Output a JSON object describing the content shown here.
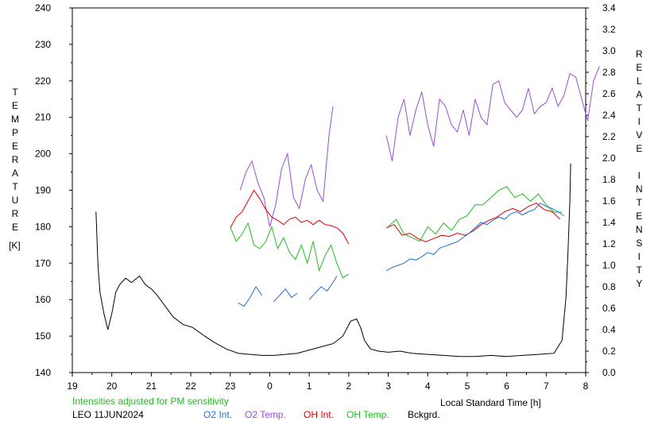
{
  "chart_data": {
    "type": "line",
    "title": "",
    "left_axis": {
      "label": "TEMPERATURE",
      "unit": "[K]",
      "ylim": [
        140,
        240
      ],
      "ticks": [
        "140",
        "150",
        "160",
        "170",
        "180",
        "190",
        "200",
        "210",
        "220",
        "230",
        "240"
      ]
    },
    "right_axis": {
      "label": "RELATIVE INTENSITY",
      "ylim": [
        0.0,
        3.4
      ],
      "ticks": [
        "0.0",
        "0.2",
        "0.4",
        "0.6",
        "0.8",
        "1.0",
        "1.2",
        "1.4",
        "1.6",
        "1.8",
        "2.0",
        "2.2",
        "2.4",
        "2.6",
        "2.8",
        "3.0",
        "3.2",
        "3.4"
      ]
    },
    "x_axis": {
      "label": "Local Standard Time [h]",
      "range": [
        19,
        32
      ],
      "ticks": [
        "19",
        "20",
        "21",
        "22",
        "23",
        "0",
        "1",
        "2",
        "3",
        "4",
        "5",
        "6",
        "7",
        "8"
      ]
    },
    "note": "Intensities adjusted for PM sensitivity",
    "station_date": "LEO 11JUN2024",
    "legend": [
      "O2 Int.",
      "O2 Temp.",
      "OH Int.",
      "OH Temp.",
      "Bckgrd."
    ],
    "series": [
      {
        "name": "O2 Temp.",
        "axis": "left",
        "color": "#9a4dd1",
        "segments": [
          {
            "x": [
              23.25,
              23.4,
              23.55,
              23.7,
              23.85,
              24.0,
              24.15,
              24.3,
              24.45,
              24.6,
              24.75,
              24.9,
              25.05,
              25.2,
              25.35,
              25.5,
              25.6
            ],
            "y": [
              190,
              195,
              198,
              192,
              188,
              180,
              186,
              196,
              200,
              188,
              185,
              193,
              197,
              190,
              187,
              205,
              213
            ]
          },
          {
            "x": [
              26.95,
              27.1,
              27.25,
              27.4,
              27.55,
              27.7,
              27.85,
              28.0,
              28.15,
              28.3,
              28.45,
              28.6,
              28.75,
              28.9,
              29.05,
              29.2,
              29.35,
              29.5,
              29.65,
              29.8,
              29.95,
              30.1,
              30.25,
              30.4,
              30.55,
              30.7,
              30.85,
              31.0,
              31.15,
              31.3,
              31.45,
              31.6,
              31.75,
              31.9,
              32.05,
              32.2,
              32.35
            ],
            "y": [
              205,
              198,
              210,
              215,
              205,
              212,
              217,
              208,
              202,
              215,
              213,
              208,
              206,
              212,
              205,
              215,
              210,
              208,
              219,
              220,
              214,
              212,
              210,
              212,
              218,
              211,
              213,
              214,
              218,
              213,
              216,
              222,
              221,
              215,
              209,
              220,
              224
            ]
          }
        ]
      },
      {
        "name": "OH Temp.",
        "axis": "left",
        "color": "#22bb22",
        "segments": [
          {
            "x": [
              23.0,
              23.15,
              23.3,
              23.45,
              23.6,
              23.75,
              23.9,
              24.05,
              24.2,
              24.35,
              24.5,
              24.65,
              24.8,
              24.95,
              25.1,
              25.25,
              25.4,
              25.55,
              25.7,
              25.85,
              26.0
            ],
            "y": [
              180,
              176,
              178,
              181,
              175,
              174,
              176,
              180,
              174,
              177,
              173,
              171,
              175,
              170,
              176,
              168,
              172,
              175,
              170,
              166,
              167
            ]
          },
          {
            "x": [
              27.0,
              27.2,
              27.4,
              27.6,
              27.8,
              28.0,
              28.2,
              28.4,
              28.6,
              28.8,
              29.0,
              29.2,
              29.4,
              29.6,
              29.8,
              30.0,
              30.2,
              30.4,
              30.6,
              30.8,
              31.0,
              31.2,
              31.4
            ],
            "y": [
              180,
              182,
              178,
              177,
              176,
              180,
              178,
              181,
              179,
              182,
              183,
              186,
              186,
              188,
              190,
              191,
              188,
              189,
              187,
              189,
              186,
              184,
              184
            ]
          }
        ]
      },
      {
        "name": "OH Int.",
        "axis": "right",
        "color": "#e00000",
        "segments": [
          {
            "x": [
              23.0,
              23.15,
              23.3,
              23.45,
              23.6,
              23.75,
              23.9,
              24.05,
              24.2,
              24.35,
              24.5,
              24.65,
              24.8,
              24.95,
              25.1,
              25.25,
              25.4,
              25.55,
              25.7,
              25.85,
              26.0
            ],
            "y": [
              1.35,
              1.45,
              1.5,
              1.6,
              1.7,
              1.62,
              1.52,
              1.45,
              1.42,
              1.38,
              1.43,
              1.45,
              1.4,
              1.42,
              1.38,
              1.42,
              1.38,
              1.37,
              1.35,
              1.3,
              1.2
            ]
          },
          {
            "x": [
              26.95,
              27.15,
              27.35,
              27.55,
              27.75,
              27.95,
              28.15,
              28.35,
              28.55,
              28.75,
              28.95,
              29.15,
              29.35,
              29.55,
              29.75,
              29.95,
              30.15,
              30.35,
              30.55,
              30.75,
              30.95,
              31.15,
              31.35
            ],
            "y": [
              1.35,
              1.38,
              1.28,
              1.3,
              1.25,
              1.22,
              1.25,
              1.28,
              1.27,
              1.3,
              1.28,
              1.32,
              1.38,
              1.42,
              1.45,
              1.5,
              1.53,
              1.5,
              1.55,
              1.58,
              1.52,
              1.5,
              1.43
            ]
          }
        ]
      },
      {
        "name": "O2 Int.",
        "axis": "right",
        "color": "#1f6fd6",
        "segments": [
          {
            "x": [
              23.2,
              23.35,
              23.5,
              23.65,
              23.8
            ],
            "y": [
              0.65,
              0.62,
              0.7,
              0.8,
              0.72
            ]
          },
          {
            "x": [
              24.1,
              24.25,
              24.4,
              24.55,
              24.7
            ],
            "y": [
              0.66,
              0.72,
              0.78,
              0.7,
              0.74
            ]
          },
          {
            "x": [
              25.0,
              25.15,
              25.3,
              25.45,
              25.6,
              25.7
            ],
            "y": [
              0.68,
              0.74,
              0.8,
              0.76,
              0.84,
              0.9
            ]
          },
          {
            "x": [
              26.95,
              27.1,
              27.25,
              27.4,
              27.55,
              27.7,
              27.85,
              28.0,
              28.15,
              28.3,
              28.45,
              28.6,
              28.75,
              28.9,
              29.05,
              29.2,
              29.35,
              29.5,
              29.65,
              29.8,
              29.95,
              30.1,
              30.25,
              30.4,
              30.55,
              30.7,
              30.85,
              31.0,
              31.15,
              31.3,
              31.45
            ],
            "y": [
              0.95,
              0.98,
              1.0,
              1.02,
              1.06,
              1.05,
              1.08,
              1.12,
              1.1,
              1.16,
              1.18,
              1.2,
              1.22,
              1.26,
              1.3,
              1.35,
              1.4,
              1.38,
              1.42,
              1.45,
              1.43,
              1.48,
              1.5,
              1.47,
              1.5,
              1.52,
              1.58,
              1.55,
              1.53,
              1.5,
              1.46
            ]
          }
        ]
      },
      {
        "name": "Bckgrd.",
        "axis": "right",
        "color": "#000000",
        "segments": [
          {
            "x": [
              19.6,
              19.62,
              19.65,
              19.7,
              19.8,
              19.9,
              20.0,
              20.1,
              20.2,
              20.35,
              20.5,
              20.7,
              20.85,
              21.0,
              21.15,
              21.35,
              21.55,
              21.8,
              22.05,
              22.35,
              22.6,
              22.9,
              23.2,
              23.5,
              23.8,
              24.1,
              24.4,
              24.7,
              25.0,
              25.3,
              25.6,
              25.85,
              26.05,
              26.2,
              26.3,
              26.4,
              26.55,
              26.75,
              27.0,
              27.3,
              27.6,
              28.0,
              28.4,
              28.8,
              29.2,
              29.6,
              30.0,
              30.4,
              30.8,
              31.2,
              31.4,
              31.5,
              31.55,
              31.6,
              31.62
            ],
            "y": [
              1.5,
              1.3,
              1.0,
              0.75,
              0.55,
              0.4,
              0.55,
              0.75,
              0.82,
              0.88,
              0.84,
              0.9,
              0.82,
              0.78,
              0.72,
              0.62,
              0.52,
              0.45,
              0.42,
              0.34,
              0.28,
              0.22,
              0.18,
              0.17,
              0.16,
              0.16,
              0.17,
              0.18,
              0.21,
              0.24,
              0.27,
              0.34,
              0.48,
              0.5,
              0.42,
              0.3,
              0.22,
              0.2,
              0.19,
              0.2,
              0.18,
              0.17,
              0.16,
              0.15,
              0.15,
              0.16,
              0.15,
              0.16,
              0.17,
              0.18,
              0.3,
              0.7,
              1.1,
              1.6,
              1.95
            ]
          }
        ]
      }
    ],
    "colors": {
      "axes": "#000000",
      "note": "#22bb22"
    }
  }
}
